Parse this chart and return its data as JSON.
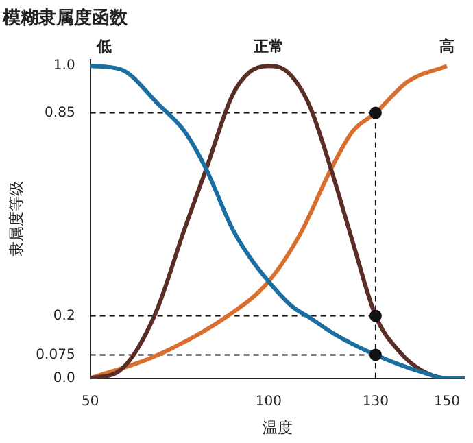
{
  "chart_data": {
    "type": "line",
    "title": "模糊隶属度函数",
    "xlabel": "温度",
    "ylabel": "隶属度等级",
    "xlim": [
      50,
      155
    ],
    "xticks": [
      50,
      100,
      130,
      150
    ],
    "ylim": [
      0,
      1.02
    ],
    "yticks": [
      {
        "value": 0,
        "label": "0.0"
      },
      0.075,
      0.2,
      0.85,
      {
        "value": 1,
        "label": "1.0"
      }
    ],
    "grid": false,
    "legend": false,
    "marker": "none",
    "line_style": "solid",
    "series": [
      {
        "name": "低",
        "color": "#1a6fa0",
        "x": [
          50,
          58.4,
          69.3,
          76.5,
          82.5,
          89.8,
          94.6,
          100,
          106.6,
          111.4,
          118.7,
          130,
          142.8,
          150,
          155
        ],
        "values": [
          1,
          0.99,
          0.875,
          0.79,
          0.67,
          0.48,
          0.39,
          0.31,
          0.23,
          0.195,
          0.14,
          0.075,
          0.02,
          0,
          0
        ]
      },
      {
        "name": "正常",
        "color": "#5a2e26",
        "x": [
          50,
          58.4,
          68,
          76.5,
          82.5,
          89.8,
          94.6,
          100,
          105.4,
          111.4,
          117.5,
          123.5,
          130,
          136.7,
          142.8,
          150,
          155
        ],
        "values": [
          0,
          0.026,
          0.2,
          0.48,
          0.67,
          0.905,
          0.98,
          1,
          0.98,
          0.875,
          0.67,
          0.44,
          0.2,
          0.085,
          0.026,
          0,
          0
        ]
      },
      {
        "name": "高",
        "color": "#d86f2e",
        "x": [
          50,
          68,
          88.6,
          100,
          109,
          117.5,
          123.5,
          130,
          139,
          150
        ],
        "values": [
          0,
          0.07,
          0.2,
          0.31,
          0.465,
          0.67,
          0.79,
          0.85,
          0.95,
          1
        ]
      },
      {
        "type": "scatter",
        "color": "#111111",
        "marker": "circle",
        "x": [
          130,
          130,
          130
        ],
        "values": [
          0.85,
          0.2,
          0.075
        ]
      }
    ],
    "ref_lines": [
      {
        "axis": "y",
        "value": 0.85,
        "line_style": "dashed",
        "color": "#111111"
      },
      {
        "axis": "y",
        "value": 0.2,
        "line_style": "dashed",
        "color": "#111111"
      },
      {
        "axis": "y",
        "value": 0.075,
        "line_style": "dashed",
        "color": "#111111"
      },
      {
        "axis": "x",
        "value": 130,
        "line_style": "dashed",
        "color": "#111111"
      }
    ]
  }
}
